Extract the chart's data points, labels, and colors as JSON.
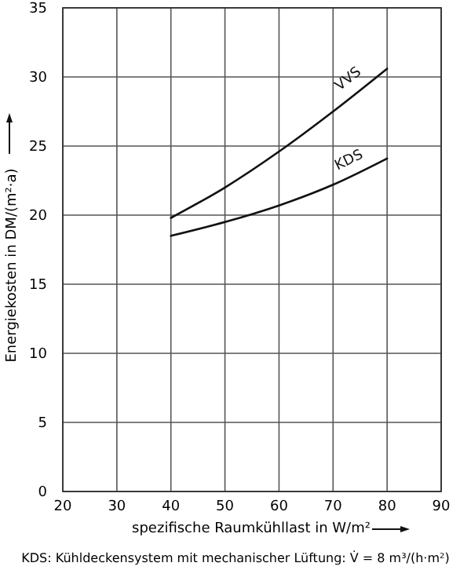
{
  "chart_data": {
    "type": "line",
    "xlabel": "spezifische Raumkühllast in W/m²",
    "ylabel": "Energiekosten in DM/(m²·a)",
    "x": [
      40,
      50,
      60,
      70,
      80
    ],
    "series": [
      {
        "name": "VVS",
        "color": "#111111",
        "values": [
          19.8,
          22.0,
          24.6,
          27.5,
          30.6
        ]
      },
      {
        "name": "KDS",
        "color": "#111111",
        "values": [
          18.5,
          19.5,
          20.7,
          22.2,
          24.1
        ]
      }
    ],
    "xlim": [
      20,
      90
    ],
    "xticks": [
      20,
      30,
      40,
      50,
      60,
      70,
      80,
      90
    ],
    "ylim": [
      0,
      35
    ],
    "yticks": [
      0,
      5,
      10,
      15,
      20,
      25,
      30,
      35
    ],
    "grid": true,
    "marker": "none",
    "line_style": "solid",
    "annotations": [
      "KDS: Kühldeckensystem mit mechanischer Lüftung: V̇ = 8 m³/(h·m²)"
    ]
  }
}
